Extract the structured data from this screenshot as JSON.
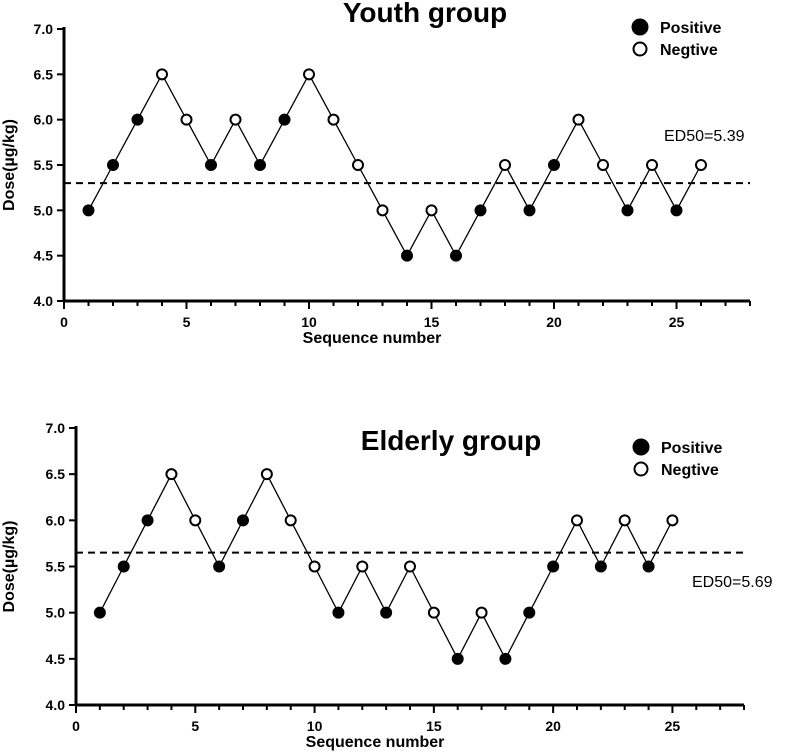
{
  "chart_data": [
    {
      "type": "line",
      "title": "Youth group",
      "xlabel": "Sequence number",
      "ylabel": "Dose(µg/kg)",
      "xlim": [
        0,
        28
      ],
      "ylim": [
        4.0,
        7.0
      ],
      "x_ticks": [
        "0",
        "5",
        "10",
        "15",
        "20",
        "25"
      ],
      "y_ticks": [
        "4.0",
        "4.5",
        "5.0",
        "5.5",
        "6.0",
        "6.5",
        "7.0"
      ],
      "legend": [
        {
          "label": "Positive",
          "marker": "filled"
        },
        {
          "label": "Negtive",
          "marker": "open"
        }
      ],
      "reference_line": {
        "y": 5.3,
        "style": "dashed"
      },
      "annotation": "ED50=5.39",
      "points": [
        {
          "x": 1,
          "y": 5.0,
          "response": "positive"
        },
        {
          "x": 2,
          "y": 5.5,
          "response": "positive"
        },
        {
          "x": 3,
          "y": 6.0,
          "response": "positive"
        },
        {
          "x": 4,
          "y": 6.5,
          "response": "negative"
        },
        {
          "x": 5,
          "y": 6.0,
          "response": "negative"
        },
        {
          "x": 6,
          "y": 5.5,
          "response": "positive"
        },
        {
          "x": 7,
          "y": 6.0,
          "response": "negative"
        },
        {
          "x": 8,
          "y": 5.5,
          "response": "positive"
        },
        {
          "x": 9,
          "y": 6.0,
          "response": "positive"
        },
        {
          "x": 10,
          "y": 6.5,
          "response": "negative"
        },
        {
          "x": 11,
          "y": 6.0,
          "response": "negative"
        },
        {
          "x": 12,
          "y": 5.5,
          "response": "negative"
        },
        {
          "x": 13,
          "y": 5.0,
          "response": "negative"
        },
        {
          "x": 14,
          "y": 4.5,
          "response": "positive"
        },
        {
          "x": 15,
          "y": 5.0,
          "response": "negative"
        },
        {
          "x": 16,
          "y": 4.5,
          "response": "positive"
        },
        {
          "x": 17,
          "y": 5.0,
          "response": "positive"
        },
        {
          "x": 18,
          "y": 5.5,
          "response": "negative"
        },
        {
          "x": 19,
          "y": 5.0,
          "response": "positive"
        },
        {
          "x": 20,
          "y": 5.5,
          "response": "positive"
        },
        {
          "x": 21,
          "y": 6.0,
          "response": "negative"
        },
        {
          "x": 22,
          "y": 5.5,
          "response": "negative"
        },
        {
          "x": 23,
          "y": 5.0,
          "response": "positive"
        },
        {
          "x": 24,
          "y": 5.5,
          "response": "negative"
        },
        {
          "x": 25,
          "y": 5.0,
          "response": "positive"
        },
        {
          "x": 26,
          "y": 5.5,
          "response": "negative"
        }
      ]
    },
    {
      "type": "line",
      "title": "Elderly group",
      "xlabel": "Sequence number",
      "ylabel": "Dose(µg/kg)",
      "xlim": [
        0,
        28
      ],
      "ylim": [
        4.0,
        7.0
      ],
      "x_ticks": [
        "0",
        "5",
        "10",
        "15",
        "20",
        "25"
      ],
      "y_ticks": [
        "4.0",
        "4.5",
        "5.0",
        "5.5",
        "6.0",
        "6.5",
        "7.0"
      ],
      "legend": [
        {
          "label": "Positive",
          "marker": "filled"
        },
        {
          "label": "Negtive",
          "marker": "open"
        }
      ],
      "reference_line": {
        "y": 5.65,
        "style": "dashed"
      },
      "annotation": "ED50=5.69",
      "points": [
        {
          "x": 1,
          "y": 5.0,
          "response": "positive"
        },
        {
          "x": 2,
          "y": 5.5,
          "response": "positive"
        },
        {
          "x": 3,
          "y": 6.0,
          "response": "positive"
        },
        {
          "x": 4,
          "y": 6.5,
          "response": "negative"
        },
        {
          "x": 5,
          "y": 6.0,
          "response": "negative"
        },
        {
          "x": 6,
          "y": 5.5,
          "response": "positive"
        },
        {
          "x": 7,
          "y": 6.0,
          "response": "positive"
        },
        {
          "x": 8,
          "y": 6.5,
          "response": "negative"
        },
        {
          "x": 9,
          "y": 6.0,
          "response": "negative"
        },
        {
          "x": 10,
          "y": 5.5,
          "response": "negative"
        },
        {
          "x": 11,
          "y": 5.0,
          "response": "positive"
        },
        {
          "x": 12,
          "y": 5.5,
          "response": "negative"
        },
        {
          "x": 13,
          "y": 5.0,
          "response": "positive"
        },
        {
          "x": 14,
          "y": 5.5,
          "response": "negative"
        },
        {
          "x": 15,
          "y": 5.0,
          "response": "negative"
        },
        {
          "x": 16,
          "y": 4.5,
          "response": "positive"
        },
        {
          "x": 17,
          "y": 5.0,
          "response": "negative"
        },
        {
          "x": 18,
          "y": 4.5,
          "response": "positive"
        },
        {
          "x": 19,
          "y": 5.0,
          "response": "positive"
        },
        {
          "x": 20,
          "y": 5.5,
          "response": "positive"
        },
        {
          "x": 21,
          "y": 6.0,
          "response": "negative"
        },
        {
          "x": 22,
          "y": 5.5,
          "response": "positive"
        },
        {
          "x": 23,
          "y": 6.0,
          "response": "negative"
        },
        {
          "x": 24,
          "y": 5.5,
          "response": "positive"
        },
        {
          "x": 25,
          "y": 6.0,
          "response": "negative"
        }
      ]
    }
  ]
}
